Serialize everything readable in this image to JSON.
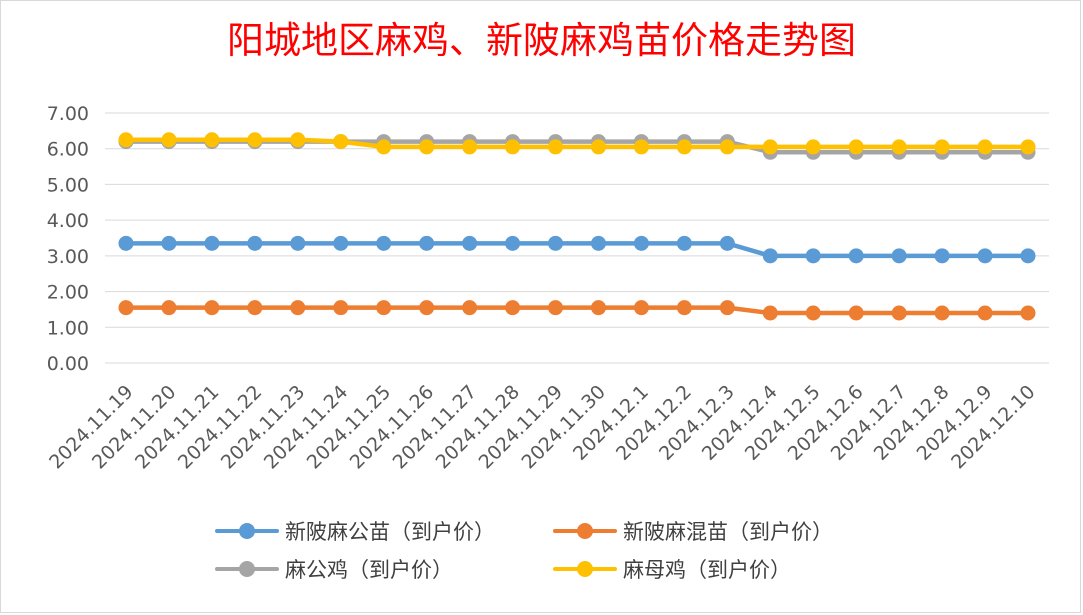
{
  "chart_data": {
    "type": "line",
    "title": "阳城地区麻鸡、新陂麻鸡苗价格走势图",
    "xlabel": "",
    "ylabel": "",
    "ylim": [
      0,
      7
    ],
    "y_ticks": [
      "0.00",
      "1.00",
      "2.00",
      "3.00",
      "4.00",
      "5.00",
      "6.00",
      "7.00"
    ],
    "grid": true,
    "legend_position": "bottom",
    "categories": [
      "2024.11.19",
      "2024.11.20",
      "2024.11.21",
      "2024.11.22",
      "2024.11.23",
      "2024.11.24",
      "2024.11.25",
      "2024.11.26",
      "2024.11.27",
      "2024.11.28",
      "2024.11.29",
      "2024.11.30",
      "2024.12.1",
      "2024.12.2",
      "2024.12.3",
      "2024.12.4",
      "2024.12.5",
      "2024.12.6",
      "2024.12.7",
      "2024.12.8",
      "2024.12.9",
      "2024.12.10"
    ],
    "series": [
      {
        "name": "新陂麻公苗（到户价）",
        "color": "#5b9bd5",
        "values": [
          3.35,
          3.35,
          3.35,
          3.35,
          3.35,
          3.35,
          3.35,
          3.35,
          3.35,
          3.35,
          3.35,
          3.35,
          3.35,
          3.35,
          3.35,
          3.0,
          3.0,
          3.0,
          3.0,
          3.0,
          3.0,
          3.0
        ]
      },
      {
        "name": "新陂麻混苗（到户价）",
        "color": "#ed7d31",
        "values": [
          1.55,
          1.55,
          1.55,
          1.55,
          1.55,
          1.55,
          1.55,
          1.55,
          1.55,
          1.55,
          1.55,
          1.55,
          1.55,
          1.55,
          1.55,
          1.4,
          1.4,
          1.4,
          1.4,
          1.4,
          1.4,
          1.4
        ]
      },
      {
        "name": "麻公鸡（到户价）",
        "color": "#a5a5a5",
        "values": [
          6.2,
          6.2,
          6.2,
          6.2,
          6.2,
          6.2,
          6.2,
          6.2,
          6.2,
          6.2,
          6.2,
          6.2,
          6.2,
          6.2,
          6.2,
          5.9,
          5.9,
          5.9,
          5.9,
          5.9,
          5.9,
          5.9
        ]
      },
      {
        "name": "麻母鸡（到户价）",
        "color": "#ffc000",
        "values": [
          6.25,
          6.25,
          6.25,
          6.25,
          6.25,
          6.2,
          6.05,
          6.05,
          6.05,
          6.05,
          6.05,
          6.05,
          6.05,
          6.05,
          6.05,
          6.05,
          6.05,
          6.05,
          6.05,
          6.05,
          6.05,
          6.05
        ]
      }
    ]
  }
}
